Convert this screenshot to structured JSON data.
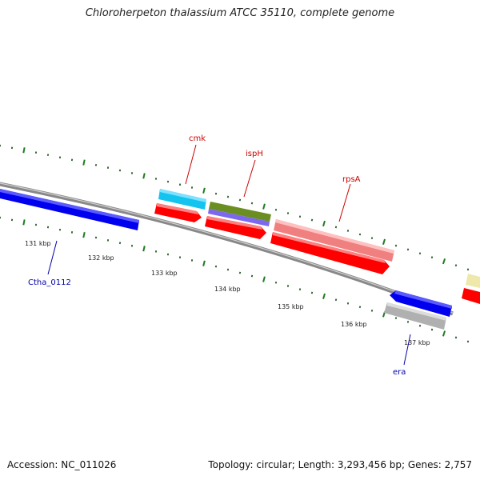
{
  "title": "Chloroherpeton thalassium ATCC 35110, complete genome",
  "footer": {
    "accession": "Accession: NC_011026",
    "summary": "Topology: circular; Length: 3,293,456 bp; Genes: 2,757"
  },
  "colors": {
    "backbone": "#8a8a8a",
    "tick_dark": "#1f6b1f",
    "red_label": "#cc0000",
    "blue_label": "#0000aa",
    "cds_red": "#ff0000",
    "cds_blue": "#0000ee"
  },
  "kbp_ticks": [
    "131 kbp",
    "132 kbp",
    "133 kbp",
    "134 kbp",
    "135 kbp",
    "136 kbp",
    "137 kbp"
  ],
  "genes": [
    {
      "label": "cmk",
      "color": "red"
    },
    {
      "label": "ispH",
      "color": "red"
    },
    {
      "label": "rpsA",
      "color": "red"
    },
    {
      "label": "Ctha_0112",
      "color": "blue"
    },
    {
      "label": "era",
      "color": "blue"
    }
  ]
}
